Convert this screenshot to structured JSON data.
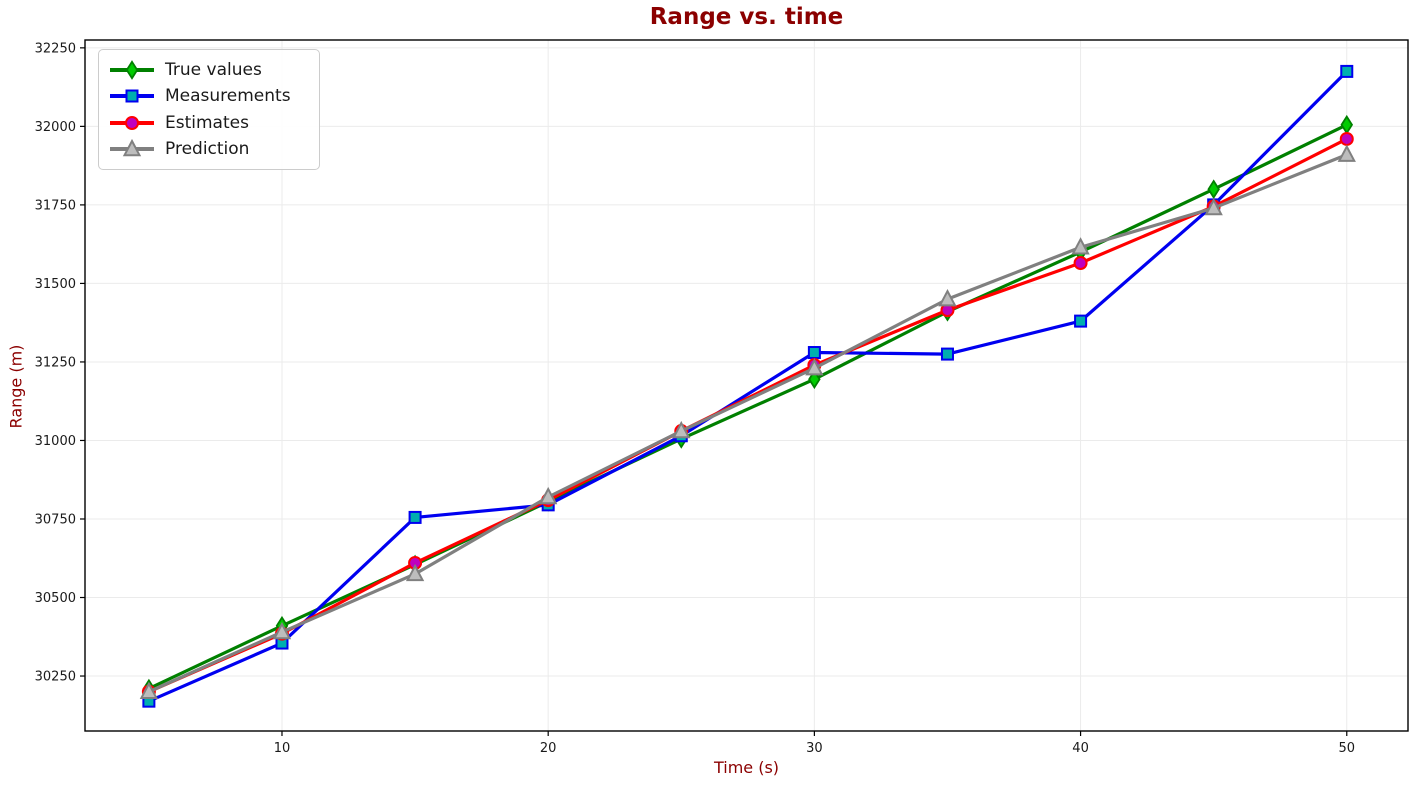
{
  "title": "Range vs. time",
  "chart_data": {
    "type": "line",
    "title": "Range vs. time",
    "xlabel": "Time (s)",
    "ylabel": "Range (m)",
    "x": [
      5,
      10,
      15,
      20,
      25,
      30,
      35,
      40,
      45,
      50
    ],
    "series": [
      {
        "name": "True values",
        "color": "#008000",
        "marker": "diamond",
        "marker_face": "#00CC00",
        "values": [
          30210,
          30410,
          30605,
          30805,
          31005,
          31195,
          31410,
          31600,
          31800,
          32005
        ]
      },
      {
        "name": "Measurements",
        "color": "#0000F0",
        "marker": "square",
        "marker_face": "#00AFAF",
        "values": [
          30170,
          30355,
          30755,
          30795,
          31015,
          31280,
          31275,
          31380,
          31750,
          32175
        ]
      },
      {
        "name": "Estimates",
        "color": "#FF0000",
        "marker": "circle",
        "marker_face": "#BF00BF",
        "values": [
          30200,
          30385,
          30610,
          30810,
          31030,
          31240,
          31415,
          31565,
          31745,
          31960
        ]
      },
      {
        "name": "Prediction",
        "color": "#808080",
        "marker": "triangle",
        "marker_face": "#BDBDBD",
        "values": [
          30200,
          30390,
          30575,
          30820,
          31030,
          31230,
          31450,
          31615,
          31740,
          31910
        ]
      }
    ],
    "xticks": [
      10,
      20,
      30,
      40,
      50
    ],
    "yticks": [
      30250,
      30500,
      30750,
      31000,
      31250,
      31500,
      31750,
      32000,
      32250
    ],
    "xlim": [
      2.6,
      52.3
    ],
    "ylim": [
      30075,
      32275
    ],
    "grid": true,
    "legend_position": "upper left",
    "title_color": "#8B0000",
    "axis_label_color": "#8B0000",
    "grid_color": "#EBEBEB",
    "spine_color": "#000000",
    "tick_label_color": "#1a1a1a"
  }
}
